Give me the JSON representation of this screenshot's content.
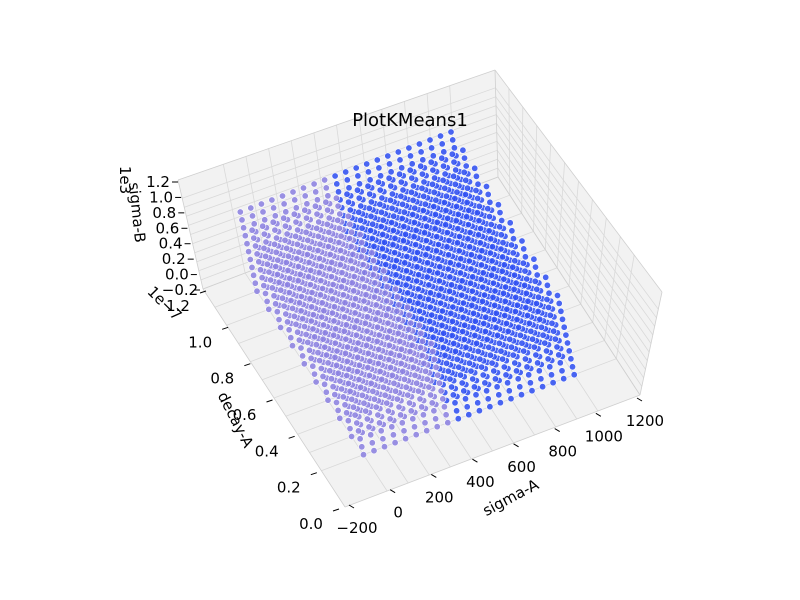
{
  "chart_data": {
    "type": "scatter",
    "projection": "3d",
    "title": "PlotKMeans1",
    "xlabel": "sigma-A",
    "ylabel": "decay-A",
    "zlabel": "sigma-B",
    "x_ticks": [
      "−200",
      "0",
      "200",
      "400",
      "600",
      "800",
      "1000",
      "1200"
    ],
    "y_ticks": [
      "0.0",
      "0.2",
      "0.4",
      "0.6",
      "0.8",
      "1.0",
      "1.2"
    ],
    "z_ticks": [
      "−0.2",
      "0.0",
      "0.2",
      "0.4",
      "0.6",
      "0.8",
      "1.0",
      "1.2"
    ],
    "y_offset_label": "1e−7",
    "z_offset_label": "1e3",
    "xlim": [
      -200,
      1200
    ],
    "ylim": [
      0.0,
      1.2
    ],
    "zlim": [
      -0.2,
      1.2
    ],
    "grid": true,
    "x_grid_values": [
      0,
      100,
      200,
      300,
      400,
      500,
      600,
      700,
      800,
      900,
      1000
    ],
    "y_grid_values": [
      0.1,
      0.2,
      0.3,
      0.4,
      0.5,
      0.6,
      0.7,
      0.8,
      0.9,
      1.0
    ],
    "z_grid_values": [
      0,
      100,
      200,
      300,
      400,
      500,
      600,
      700,
      800,
      900,
      1000
    ],
    "clusters": [
      {
        "x_range": [
          0,
          400
        ],
        "color": "#8a7fe0"
      },
      {
        "x_range": [
          450,
          1000
        ],
        "color": "#2b4cf2"
      }
    ],
    "colors": {
      "pane": "#f2f2f2",
      "grid": "#d9d9d9",
      "point_edge": "#ffffff"
    }
  }
}
